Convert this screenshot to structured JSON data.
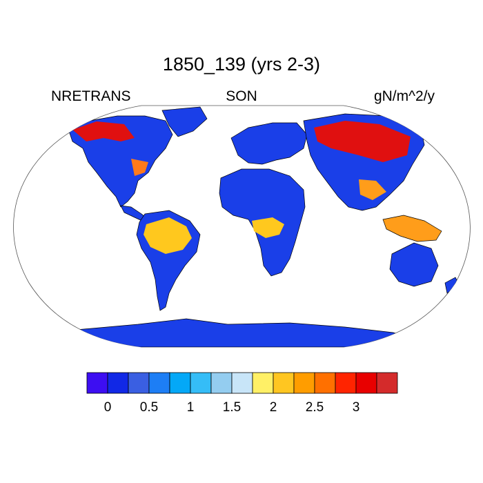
{
  "title": "1850_139 (yrs 2-3)",
  "left_label": "NRETRANS",
  "center_label": "SON",
  "right_label": "gN/m^2/y",
  "colorbar": {
    "colors": [
      "#3d0ef2",
      "#1128e6",
      "#3a5fe2",
      "#1d7ef5",
      "#04a8f7",
      "#35bdf7",
      "#94cdf0",
      "#c8e5f8",
      "#fff066",
      "#ffc621",
      "#ff9d00",
      "#ff7000",
      "#ff2400",
      "#e80000",
      "#d42b2b"
    ],
    "tick_labels": [
      "0",
      "0.5",
      "1",
      "1.5",
      "2",
      "2.5",
      "3"
    ]
  }
}
